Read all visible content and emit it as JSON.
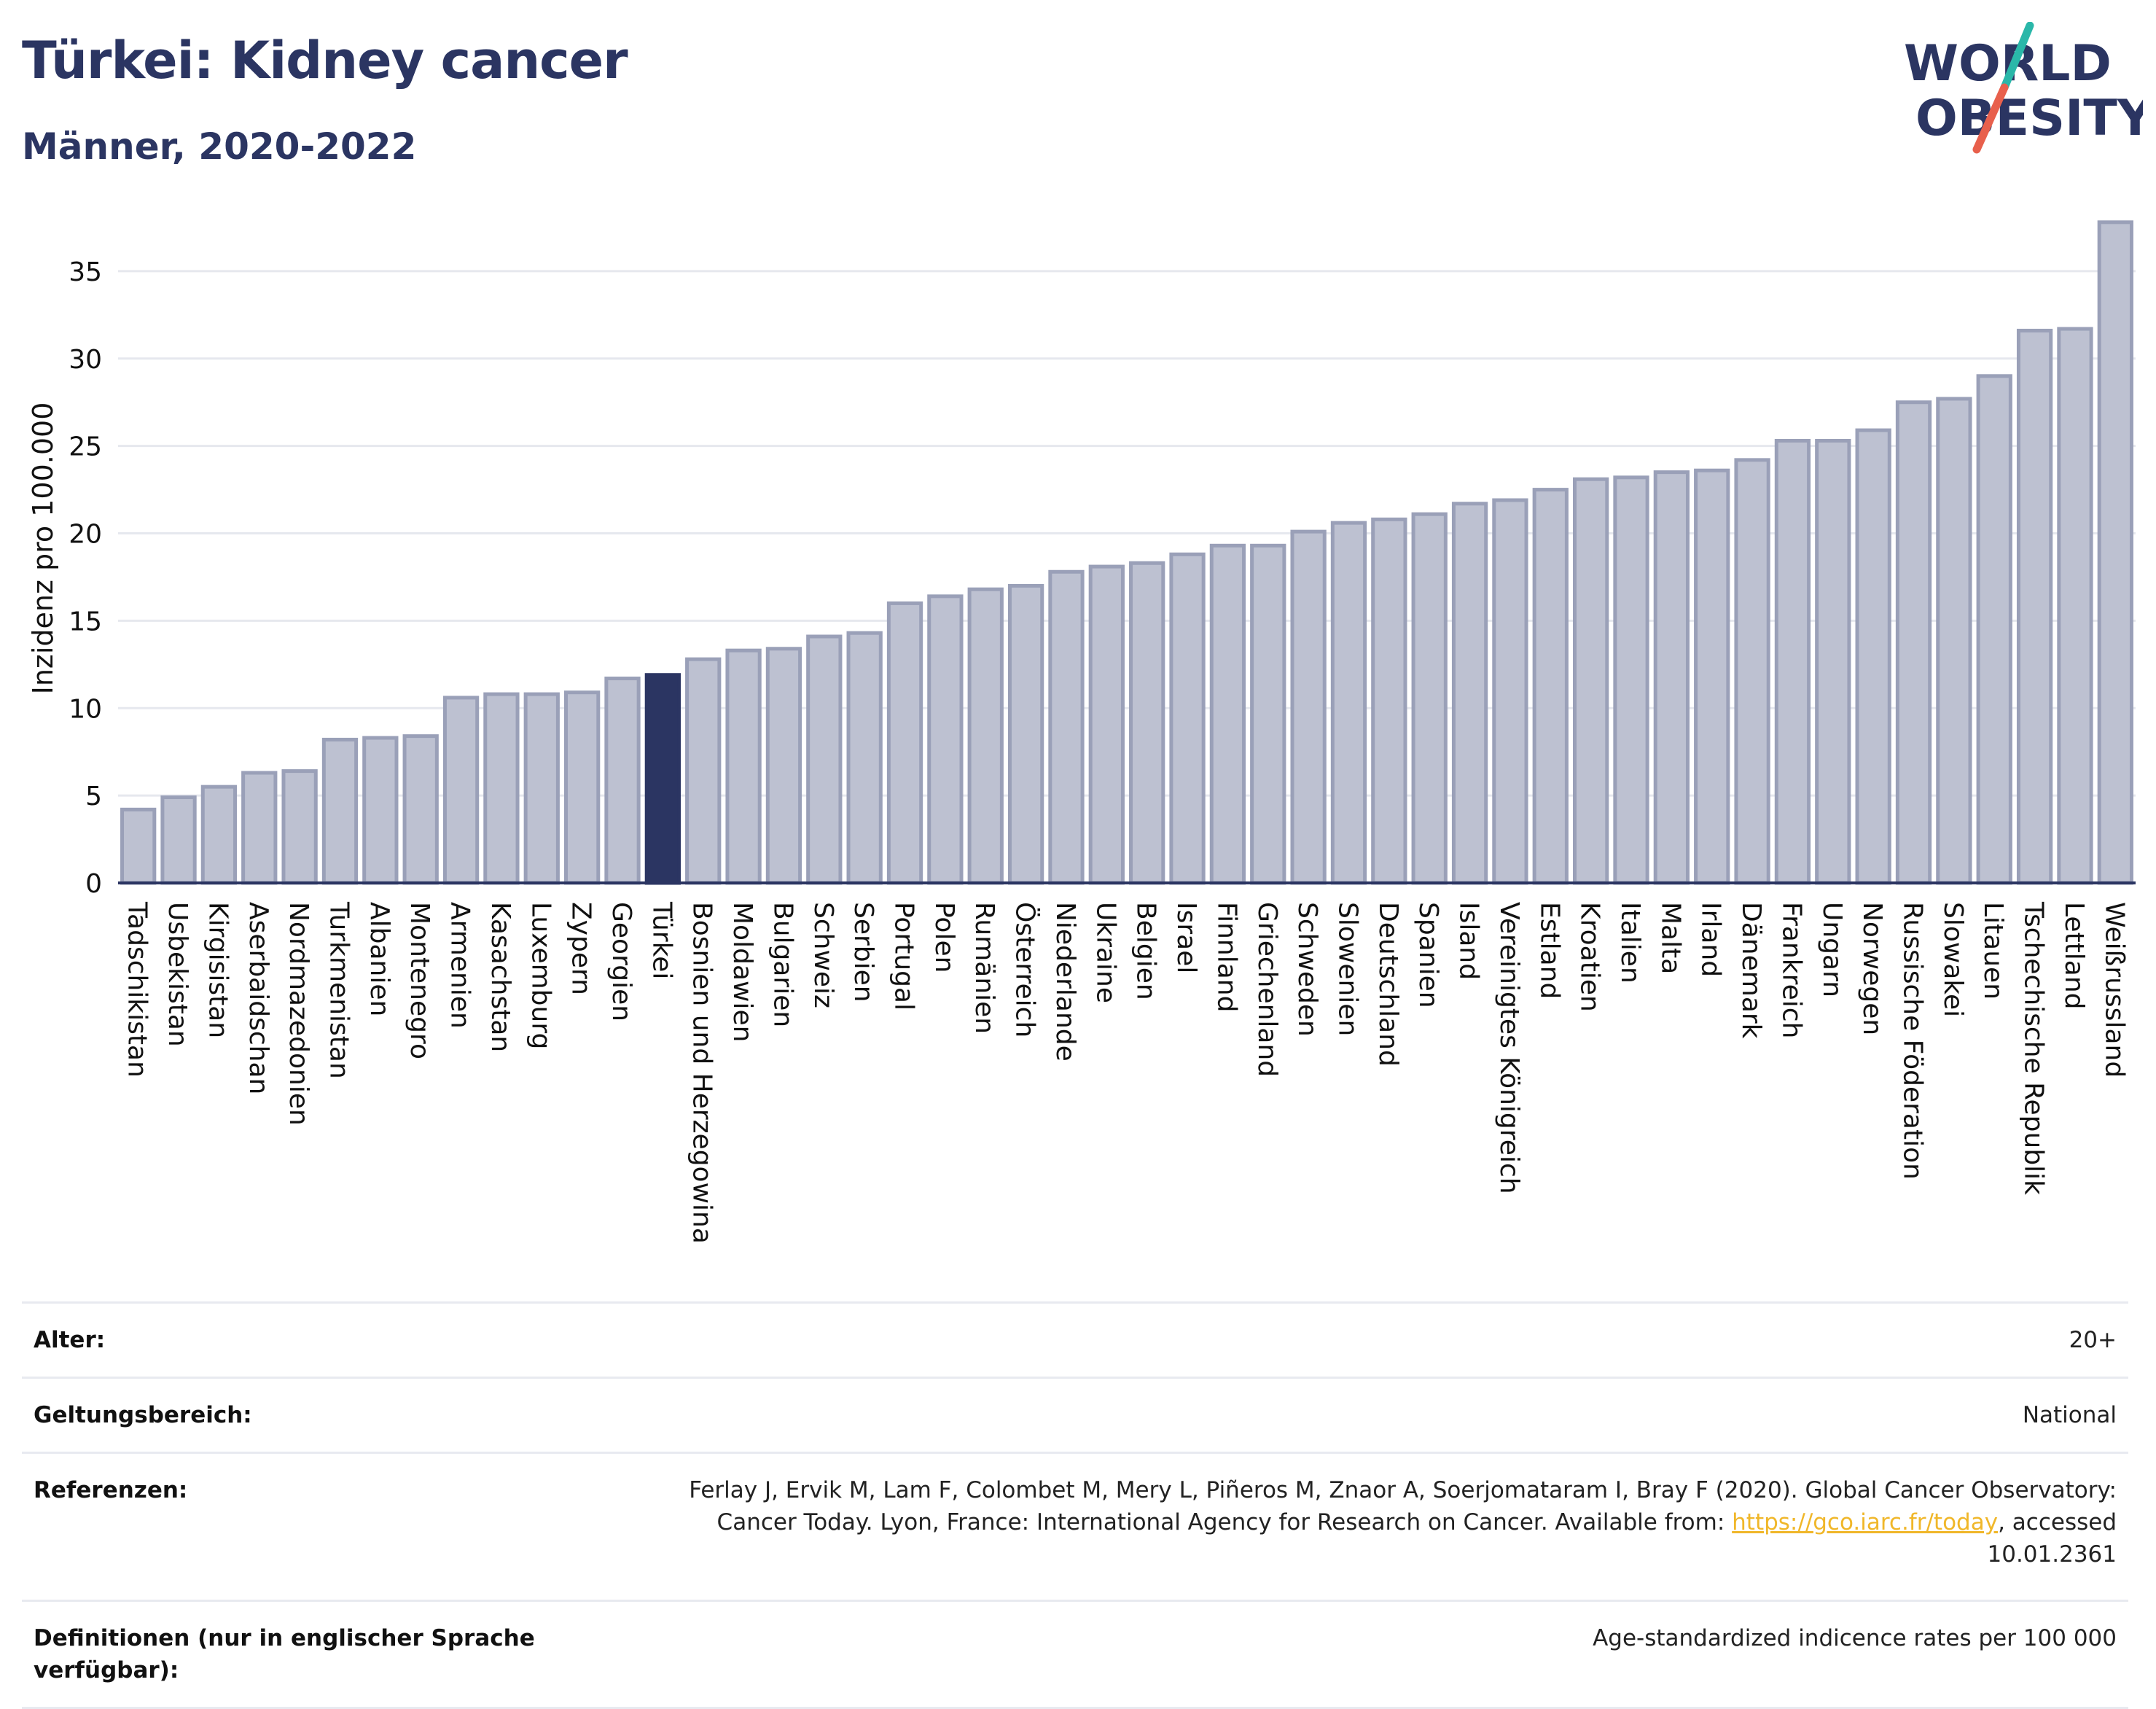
{
  "header": {
    "title": "Türkei: Kidney cancer",
    "subtitle": "Männer, 2020-2022"
  },
  "logo": {
    "line1": "WORLD",
    "line2": "OBESITY",
    "colors": {
      "text": "#2b3562",
      "slash_top": "#2ab7a9",
      "slash_bottom": "#e8604c"
    }
  },
  "colors": {
    "bar": "#bdc1d1",
    "bar_stroke": "#9aa0b8",
    "highlight": "#2b3562",
    "grid": "#e6e8ee",
    "axis": "#2b3562"
  },
  "chart_data": {
    "type": "bar",
    "ylabel": "Inzidenz pro 100.000",
    "ylim": [
      0,
      38
    ],
    "yticks": [
      0,
      5,
      10,
      15,
      20,
      25,
      30,
      35
    ],
    "grid": true,
    "highlight": "Türkei",
    "categories": [
      "Tadschikistan",
      "Usbekistan",
      "Kirgisistan",
      "Aserbaidschan",
      "Nordmazedonien",
      "Turkmenistan",
      "Albanien",
      "Montenegro",
      "Armenien",
      "Kasachstan",
      "Luxemburg",
      "Zypern",
      "Georgien",
      "Türkei",
      "Bosnien und Herzegowina",
      "Moldawien",
      "Bulgarien",
      "Schweiz",
      "Serbien",
      "Portugal",
      "Polen",
      "Rumänien",
      "Österreich",
      "Niederlande",
      "Ukraine",
      "Belgien",
      "Israel",
      "Finnland",
      "Griechenland",
      "Schweden",
      "Slowenien",
      "Deutschland",
      "Spanien",
      "Island",
      "Vereinigtes Königreich",
      "Estland",
      "Kroatien",
      "Italien",
      "Malta",
      "Irland",
      "Dänemark",
      "Frankreich",
      "Ungarn",
      "Norwegen",
      "Russische Föderation",
      "Slowakei",
      "Litauen",
      "Tschechische Republik",
      "Lettland",
      "Weißrussland"
    ],
    "values": [
      4.2,
      4.9,
      5.5,
      6.3,
      6.4,
      8.2,
      8.3,
      8.4,
      10.6,
      10.8,
      10.8,
      10.9,
      11.7,
      11.9,
      12.8,
      13.3,
      13.4,
      14.1,
      14.3,
      16.0,
      16.4,
      16.8,
      17.0,
      17.8,
      18.1,
      18.3,
      18.8,
      19.3,
      19.3,
      20.1,
      20.6,
      20.8,
      21.1,
      21.7,
      21.9,
      22.5,
      23.1,
      23.2,
      23.5,
      23.6,
      24.2,
      25.3,
      25.3,
      25.9,
      27.5,
      27.7,
      29.0,
      31.6,
      31.7,
      37.8
    ]
  },
  "meta": [
    {
      "label": "Alter:",
      "value": "20+"
    },
    {
      "label": "Geltungsbereich:",
      "value": "National"
    },
    {
      "label": "Referenzen:",
      "value_part1": "Ferlay J, Ervik M, Lam F, Colombet M, Mery L, Piñeros M, Znaor A, Soerjomataram I, Bray F (2020). Global Cancer Observatory: Cancer Today. Lyon, France: International Agency for Research on Cancer. Available from: ",
      "link": "https://gco.iarc.fr/today",
      "value_part2": ", accessed 10.01.2361"
    },
    {
      "label": "Definitionen (nur in englischer Sprache verfügbar):",
      "value": "Age-standardized indicence rates per 100 000"
    }
  ]
}
